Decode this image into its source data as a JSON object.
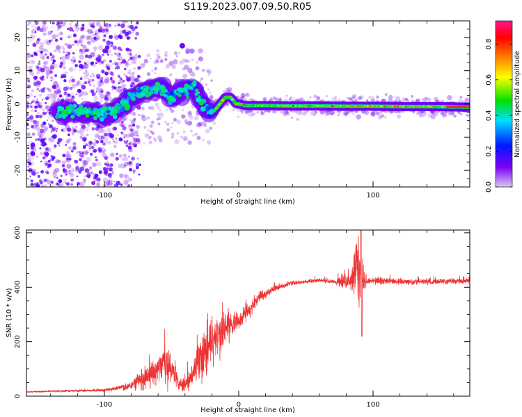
{
  "title": "S119.2023.007.09.50.R05",
  "chart_data": [
    {
      "type": "heatmap",
      "title": "",
      "xlabel": "Height of straight line (km)",
      "ylabel": "Frequency (Hz)",
      "xlim": [
        -158,
        172
      ],
      "ylim": [
        -25,
        25
      ],
      "xticks": [
        -100,
        0,
        100
      ],
      "yticks": [
        -20,
        -10,
        0,
        10,
        20
      ],
      "grid": false,
      "colorbar": {
        "label": "Normalized spectral amplitude",
        "range": [
          0.0,
          0.93
        ],
        "ticks": [
          0.0,
          0.2,
          0.4,
          0.6,
          0.8
        ],
        "colormap": [
          "#d8c8f2",
          "#7b00f5",
          "#0018ff",
          "#00e0ff",
          "#00e000",
          "#ffff00",
          "#ff7f00",
          "#ff0000",
          "#ff1493"
        ]
      },
      "ridge": {
        "x": [
          -130,
          -120,
          -110,
          -100,
          -90,
          -80,
          -70,
          -60,
          -50,
          -40,
          -33,
          -28,
          -22,
          -18,
          -14,
          -10,
          -6,
          -2,
          0,
          5,
          10,
          20,
          40,
          60,
          80,
          100,
          120,
          140,
          160,
          170
        ],
        "y": [
          -2.5,
          -2,
          -2.5,
          -3,
          -1.5,
          2,
          4,
          5,
          2,
          4,
          5,
          1,
          -2.5,
          -2,
          0,
          2,
          2,
          0,
          0,
          -0.5,
          -0.5,
          -0.5,
          -0.6,
          -0.6,
          -0.7,
          -0.7,
          -0.8,
          -0.8,
          -0.9,
          -1
        ]
      }
    },
    {
      "type": "line",
      "title": "",
      "xlabel": "Height of straight line (km)",
      "ylabel": "SNR (10 * v/v)",
      "xlim": [
        -158,
        172
      ],
      "ylim": [
        0,
        610
      ],
      "xticks": [
        -100,
        0,
        100
      ],
      "yticks": [
        0,
        200,
        400,
        600
      ],
      "grid": false,
      "color": "#ee3333",
      "series": [
        {
          "x": [
            -158,
            -140,
            -120,
            -100,
            -90,
            -80,
            -75,
            -70,
            -65,
            -60,
            -55,
            -52,
            -48,
            -45,
            -40,
            -35,
            -30,
            -25,
            -20,
            -15,
            -10,
            -5,
            0,
            5,
            10,
            15,
            20,
            25,
            30,
            40,
            50,
            60,
            70,
            80,
            85,
            88,
            90,
            92,
            95,
            100,
            120,
            140,
            160,
            172
          ],
          "values": [
            15,
            18,
            20,
            22,
            30,
            40,
            55,
            70,
            80,
            90,
            110,
            125,
            90,
            50,
            40,
            70,
            130,
            160,
            190,
            220,
            250,
            270,
            280,
            300,
            330,
            360,
            375,
            390,
            400,
            415,
            420,
            425,
            420,
            420,
            430,
            470,
            440,
            400,
            420,
            425,
            420,
            420,
            422,
            420
          ],
          "noise": [
            2,
            3,
            4,
            5,
            8,
            15,
            30,
            40,
            45,
            50,
            60,
            80,
            50,
            20,
            25,
            40,
            70,
            80,
            80,
            70,
            60,
            45,
            35,
            30,
            25,
            20,
            15,
            12,
            10,
            8,
            7,
            7,
            8,
            25,
            50,
            110,
            120,
            60,
            15,
            12,
            10,
            10,
            10,
            10
          ]
        }
      ]
    }
  ]
}
